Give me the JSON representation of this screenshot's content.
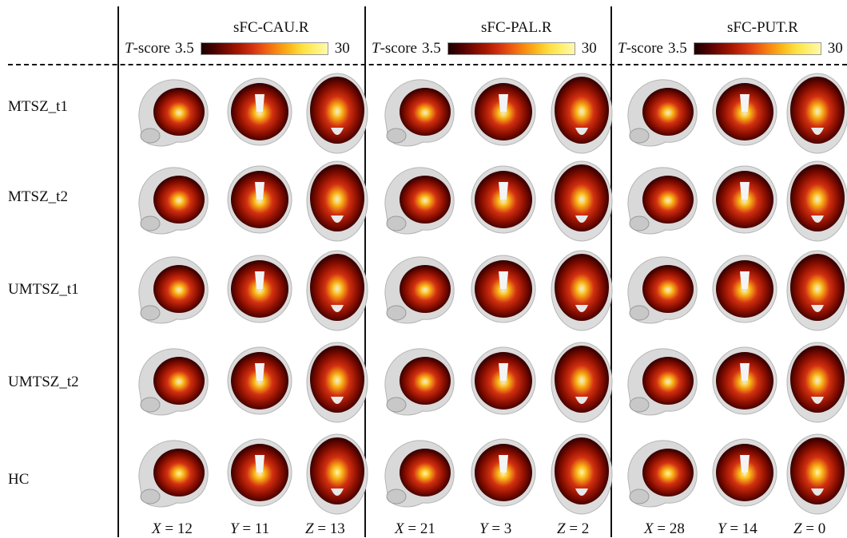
{
  "colorbar": {
    "label_italic": "T",
    "label_rest": "-score",
    "min": "3.5",
    "max": "30",
    "stops": [
      "#1a0000",
      "#4a0000",
      "#7a0a00",
      "#a81800",
      "#d23010",
      "#ee5a10",
      "#f88a10",
      "#fbb818",
      "#fde040",
      "#fff070",
      "#fff8b0"
    ]
  },
  "panels": [
    {
      "title": "sFC-CAU.R",
      "coords": [
        {
          "axis": "X",
          "value": "12"
        },
        {
          "axis": "Y",
          "value": "11"
        },
        {
          "axis": "Z",
          "value": "13"
        }
      ]
    },
    {
      "title": "sFC-PAL.R",
      "coords": [
        {
          "axis": "X",
          "value": "21"
        },
        {
          "axis": "Y",
          "value": "3"
        },
        {
          "axis": "Z",
          "value": "2"
        }
      ]
    },
    {
      "title": "sFC-PUT.R",
      "coords": [
        {
          "axis": "X",
          "value": "28"
        },
        {
          "axis": "Y",
          "value": "14"
        },
        {
          "axis": "Z",
          "value": "0"
        }
      ]
    }
  ],
  "rows": [
    "MTSZ_t1",
    "MTSZ_t2",
    "UMTSZ_t1",
    "UMTSZ_t2",
    "HC"
  ]
}
